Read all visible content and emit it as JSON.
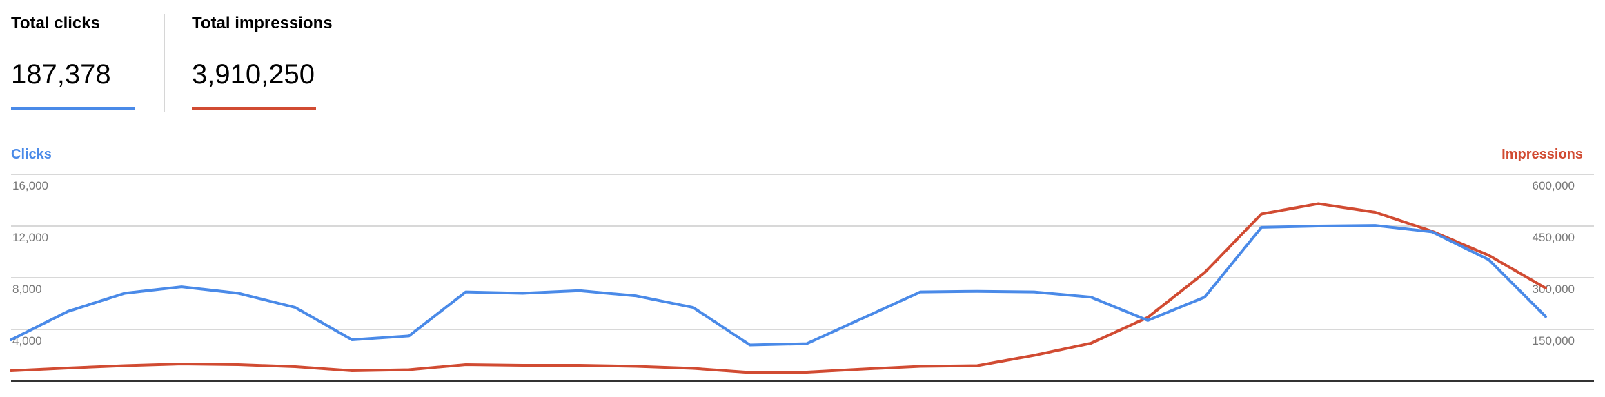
{
  "metrics": {
    "clicks": {
      "title": "Total clicks",
      "value": "187,378",
      "color": "#4a8ae8"
    },
    "impressions": {
      "title": "Total impressions",
      "value": "3,910,250",
      "color": "#d14b32"
    }
  },
  "chart_data": {
    "type": "line",
    "title": "",
    "x": [
      1,
      2,
      3,
      4,
      5,
      6,
      7,
      8,
      9,
      10,
      11,
      12,
      13,
      14,
      15,
      16,
      17,
      18,
      19,
      20,
      21,
      22,
      23,
      24,
      25,
      26,
      27,
      28
    ],
    "xlabel": "",
    "left_axis": {
      "label": "Clicks",
      "ticks": [
        4000,
        8000,
        12000,
        16000
      ],
      "tick_labels": [
        "4,000",
        "8,000",
        "12,000",
        "16,000"
      ],
      "ylim": [
        0,
        16000
      ]
    },
    "right_axis": {
      "label": "Impressions",
      "ticks": [
        150000,
        300000,
        450000,
        600000
      ],
      "tick_labels": [
        "150,000",
        "300,000",
        "450,000",
        "600,000"
      ],
      "ylim": [
        0,
        600000
      ]
    },
    "series": [
      {
        "name": "Clicks",
        "axis": "left",
        "color": "#4a8ae8",
        "values": [
          3200,
          5400,
          6800,
          7300,
          6800,
          5700,
          3200,
          3500,
          6900,
          6800,
          7000,
          6600,
          5700,
          2800,
          2900,
          4900,
          6900,
          6950,
          6900,
          6500,
          4700,
          6500,
          11900,
          12000,
          12050,
          11550,
          9400,
          5000
        ]
      },
      {
        "name": "Impressions",
        "axis": "right",
        "color": "#d14b32",
        "values": [
          30000,
          38000,
          45000,
          50000,
          48000,
          42000,
          30000,
          33000,
          48000,
          46000,
          46000,
          43000,
          37000,
          25000,
          26000,
          35000,
          43000,
          45000,
          75000,
          110000,
          185000,
          315000,
          485000,
          515000,
          490000,
          435000,
          365000,
          270000
        ]
      }
    ],
    "grid": true,
    "legend": "none"
  }
}
